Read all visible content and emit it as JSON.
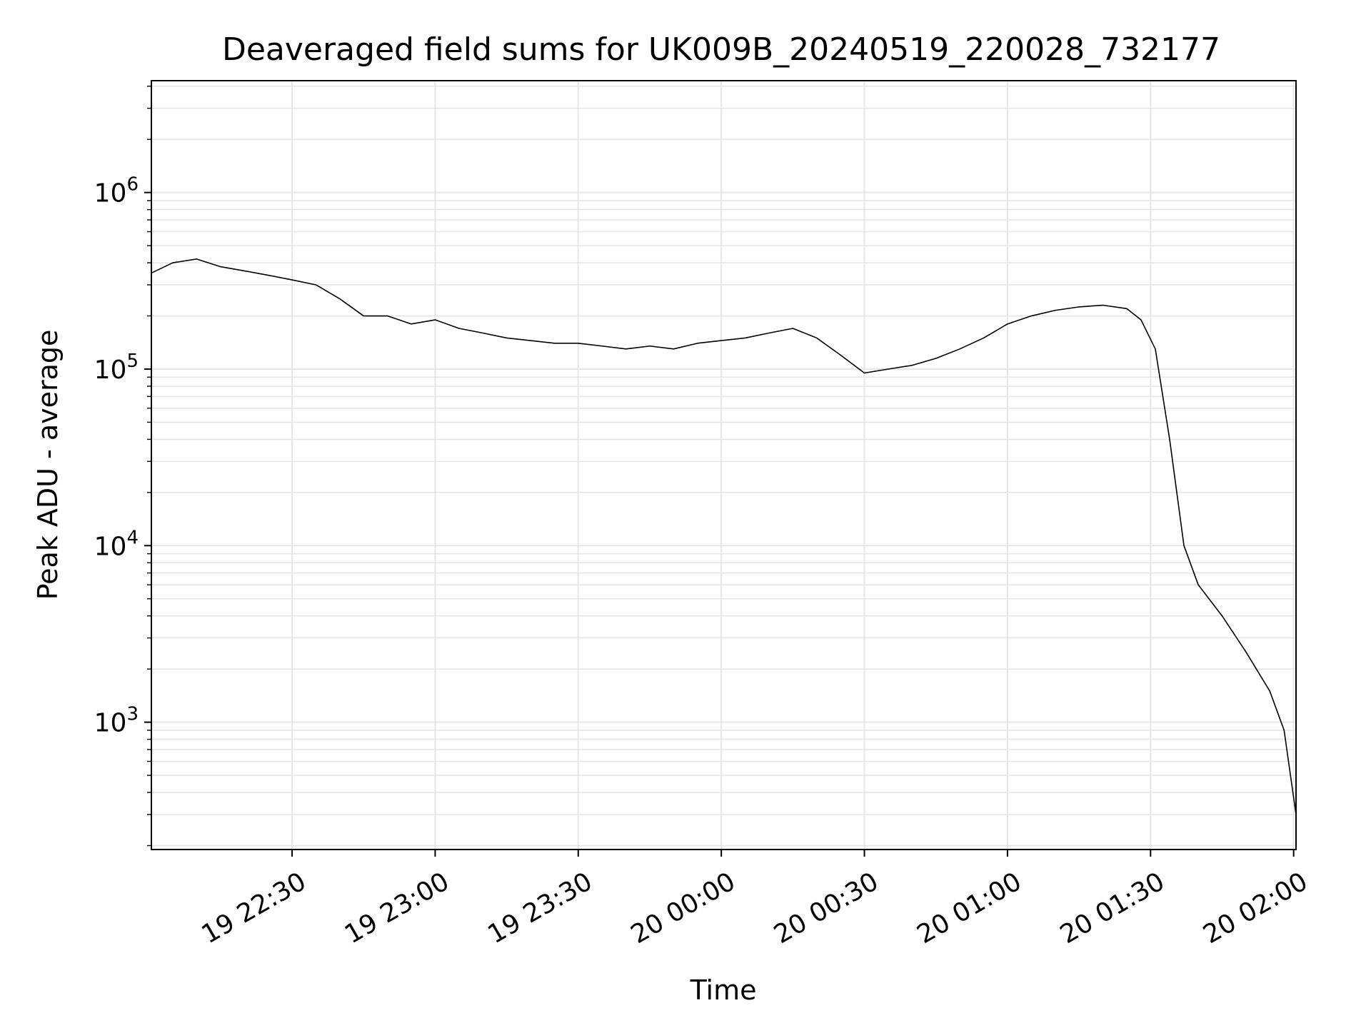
{
  "chart_data": {
    "type": "line",
    "title": "Deaveraged field sums for UK009B_20240519_220028_732177",
    "xlabel": "Time",
    "ylabel": "Peak ADU - average",
    "y_scale": "log",
    "ylim": [
      190,
      4300000
    ],
    "xlim": [
      "2024-05-19 22:00:30",
      "2024-05-20 02:00:30"
    ],
    "grid": "on",
    "line_color": "#000000",
    "grid_color": "#e6e6e6",
    "x_ticks": [
      {
        "time": "2024-05-19 22:30:00",
        "label": "19 22:30"
      },
      {
        "time": "2024-05-19 23:00:00",
        "label": "19 23:00"
      },
      {
        "time": "2024-05-19 23:30:00",
        "label": "19 23:30"
      },
      {
        "time": "2024-05-20 00:00:00",
        "label": "20 00:00"
      },
      {
        "time": "2024-05-20 00:30:00",
        "label": "20 00:30"
      },
      {
        "time": "2024-05-20 01:00:00",
        "label": "20 01:00"
      },
      {
        "time": "2024-05-20 01:30:00",
        "label": "20 01:30"
      },
      {
        "time": "2024-05-20 02:00:00",
        "label": "20 02:00"
      }
    ],
    "y_ticks": [
      {
        "value": 1000,
        "base": "10",
        "exp": "3"
      },
      {
        "value": 10000,
        "base": "10",
        "exp": "4"
      },
      {
        "value": 100000,
        "base": "10",
        "exp": "5"
      },
      {
        "value": 1000000,
        "base": "10",
        "exp": "6"
      }
    ],
    "series": [
      {
        "x": [
          "2024-05-19 22:00:30",
          "2024-05-19 22:05:00",
          "2024-05-19 22:10:00",
          "2024-05-19 22:15:00",
          "2024-05-19 22:20:00",
          "2024-05-19 22:25:00",
          "2024-05-19 22:30:00",
          "2024-05-19 22:35:00",
          "2024-05-19 22:40:00",
          "2024-05-19 22:45:00",
          "2024-05-19 22:50:00",
          "2024-05-19 22:55:00",
          "2024-05-19 23:00:00",
          "2024-05-19 23:05:00",
          "2024-05-19 23:10:00",
          "2024-05-19 23:15:00",
          "2024-05-19 23:20:00",
          "2024-05-19 23:25:00",
          "2024-05-19 23:30:00",
          "2024-05-19 23:35:00",
          "2024-05-19 23:40:00",
          "2024-05-19 23:45:00",
          "2024-05-19 23:50:00",
          "2024-05-19 23:55:00",
          "2024-05-20 00:00:00",
          "2024-05-20 00:05:00",
          "2024-05-20 00:10:00",
          "2024-05-20 00:15:00",
          "2024-05-20 00:20:00",
          "2024-05-20 00:25:00",
          "2024-05-20 00:30:00",
          "2024-05-20 00:35:00",
          "2024-05-20 00:40:00",
          "2024-05-20 00:45:00",
          "2024-05-20 00:50:00",
          "2024-05-20 00:55:00",
          "2024-05-20 01:00:00",
          "2024-05-20 01:05:00",
          "2024-05-20 01:10:00",
          "2024-05-20 01:15:00",
          "2024-05-20 01:20:00",
          "2024-05-20 01:25:00",
          "2024-05-20 01:28:00",
          "2024-05-20 01:31:00",
          "2024-05-20 01:34:00",
          "2024-05-20 01:37:00",
          "2024-05-20 01:40:00",
          "2024-05-20 01:45:00",
          "2024-05-20 01:50:00",
          "2024-05-20 01:55:00",
          "2024-05-20 01:58:00",
          "2024-05-20 02:00:30"
        ],
        "y": [
          350000,
          400000,
          420000,
          380000,
          360000,
          340000,
          320000,
          300000,
          250000,
          200000,
          200000,
          180000,
          190000,
          170000,
          160000,
          150000,
          145000,
          140000,
          140000,
          135000,
          130000,
          135000,
          130000,
          140000,
          145000,
          150000,
          160000,
          170000,
          150000,
          120000,
          95000,
          100000,
          105000,
          115000,
          130000,
          150000,
          180000,
          200000,
          215000,
          225000,
          230000,
          220000,
          190000,
          130000,
          40000,
          10000,
          6000,
          4000,
          2500,
          1500,
          900,
          300
        ]
      }
    ]
  }
}
